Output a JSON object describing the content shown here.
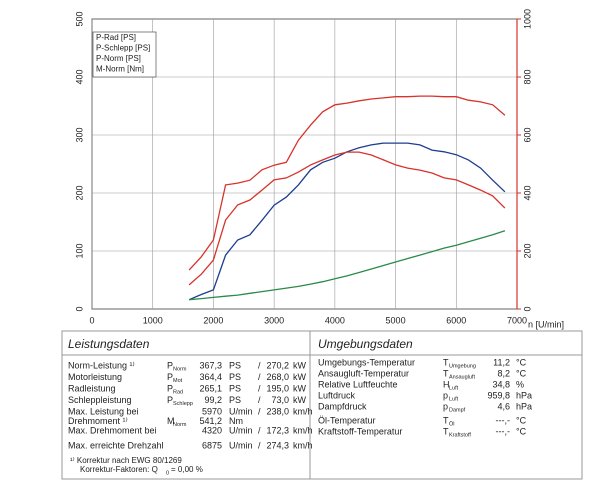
{
  "chart_data": {
    "type": "line",
    "x": [
      1600,
      1800,
      2000,
      2200,
      2400,
      2600,
      2800,
      3000,
      3200,
      3400,
      3600,
      3800,
      4000,
      4200,
      4400,
      4600,
      4800,
      5000,
      5200,
      5400,
      5600,
      5800,
      6000,
      6200,
      6400,
      6600,
      6800
    ],
    "xlim": [
      0,
      7000
    ],
    "xticks": [
      0,
      1000,
      2000,
      3000,
      4000,
      5000,
      6000,
      7000
    ],
    "ylim": [
      0,
      500
    ],
    "yticks": [
      0,
      100,
      200,
      300,
      400,
      500
    ],
    "y2lim": [
      0,
      1000
    ],
    "y2ticks": [
      0,
      200,
      400,
      600,
      800,
      1000
    ],
    "xlabel": "n [U/min]",
    "grid": true,
    "legend": "upper left",
    "y2color": "#d7322b",
    "series": [
      {
        "name": "P-Rad [PS]",
        "color": "#1f3d8f",
        "values": [
          16,
          25,
          33,
          93,
          119,
          128,
          153,
          179,
          193,
          214,
          240,
          253,
          260,
          271,
          278,
          283,
          286,
          286,
          286,
          283,
          274,
          271,
          266,
          257,
          243,
          222,
          202
        ]
      },
      {
        "name": "P-Schlepp [PS]",
        "color": "#2a8a4a",
        "values": [
          16,
          18,
          20,
          22,
          24,
          27,
          30,
          33,
          36,
          39,
          43,
          47,
          52,
          57,
          63,
          69,
          75,
          81,
          87,
          93,
          99,
          105,
          110,
          116,
          122,
          128,
          135
        ]
      },
      {
        "name": "P-Norm [PS]",
        "color": "#d7322b",
        "values": [
          67,
          90,
          119,
          214,
          217,
          222,
          240,
          248,
          253,
          291,
          317,
          340,
          352,
          355,
          359,
          362,
          364,
          366,
          366,
          367,
          367,
          366,
          366,
          360,
          357,
          352,
          334
        ]
      },
      {
        "name": "M-Norm [Nm]",
        "color": "#d7322b",
        "axis": "y2",
        "values": [
          83,
          120,
          169,
          307,
          359,
          376,
          410,
          445,
          452,
          472,
          497,
          514,
          531,
          541,
          541,
          531,
          514,
          497,
          486,
          479,
          469,
          452,
          445,
          428,
          410,
          390,
          348
        ]
      }
    ]
  },
  "performance": {
    "title": "Leistungsdaten",
    "rows": [
      {
        "label": "Norm-Leistung ¹⁾",
        "symbol": "P",
        "sub": "Norm",
        "value": "367,3",
        "unit": "PS",
        "sep": "/",
        "value2": "270,2",
        "unit2": "kW",
        "color": "#d7322b"
      },
      {
        "label": "Motorleistung",
        "symbol": "P",
        "sub": "Mot",
        "value": "364,4",
        "unit": "PS",
        "sep": "/",
        "value2": "268,0",
        "unit2": "kW",
        "color": "#d7322b"
      },
      {
        "label": "Radleistung",
        "symbol": "P",
        "sub": "Rad",
        "value": "265,1",
        "unit": "PS",
        "sep": "/",
        "value2": "195,0",
        "unit2": "kW",
        "color": "#1f3d8f"
      },
      {
        "label": "Schleppleistung",
        "symbol": "P",
        "sub": "Schlepp",
        "value": "99,2",
        "unit": "PS",
        "sep": "/",
        "value2": "73,0",
        "unit2": "kW",
        "color": "#2a8a4a"
      },
      {
        "label": "Max. Leistung bei",
        "value": "5970",
        "unit": "U/min",
        "sep": "/",
        "value2": "238,0",
        "unit2": "km/h",
        "color": "#222222"
      },
      {
        "label": "Drehmoment ¹⁾",
        "symbol": "M",
        "sub": "Norm",
        "value": "541,2",
        "unit": "Nm",
        "color": "#d7322b"
      },
      {
        "label": "Max. Drehmoment bei",
        "value": "4320",
        "unit": "U/min",
        "sep": "/",
        "value2": "172,3",
        "unit2": "km/h",
        "color": "#222222"
      },
      {
        "label": "Max. erreichte Drehzahl",
        "value": "6875",
        "unit": "U/min",
        "sep": "/",
        "value2": "274,3",
        "unit2": "km/h",
        "color": "#222222"
      }
    ],
    "footnote": "¹⁾ Korrektur nach EWG 80/1269",
    "correction": {
      "label": "Korrektur-Faktoren: Q",
      "sub": "0",
      "value": "= 0,00 %"
    }
  },
  "environment": {
    "title": "Umgebungsdaten",
    "rows": [
      {
        "label": "Umgebungs-Temperatur",
        "symbol": "T",
        "sub": "Umgebung",
        "value": "11,2",
        "unit": "°C"
      },
      {
        "label": "Ansaugluft-Temperatur",
        "symbol": "T",
        "sub": "Ansaugluft",
        "value": "8,2",
        "unit": "°C"
      },
      {
        "label": "Relative Luftfeuchte",
        "symbol": "H",
        "sub": "Luft",
        "value": "34,8",
        "unit": "%"
      },
      {
        "label": "Luftdruck",
        "symbol": "p",
        "sub": "Luft",
        "value": "959,8",
        "unit": "hPa"
      },
      {
        "label": "Dampfdruck",
        "symbol": "p",
        "sub": "Dampf",
        "value": "4,6",
        "unit": "hPa"
      },
      {
        "label": "Öl-Temperatur",
        "symbol": "T",
        "sub": "Öl",
        "value": "---,-",
        "unit": "°C"
      },
      {
        "label": "Kraftstoff-Temperatur",
        "symbol": "T",
        "sub": "Kraftstoff",
        "value": "---,-",
        "unit": "°C"
      }
    ]
  }
}
